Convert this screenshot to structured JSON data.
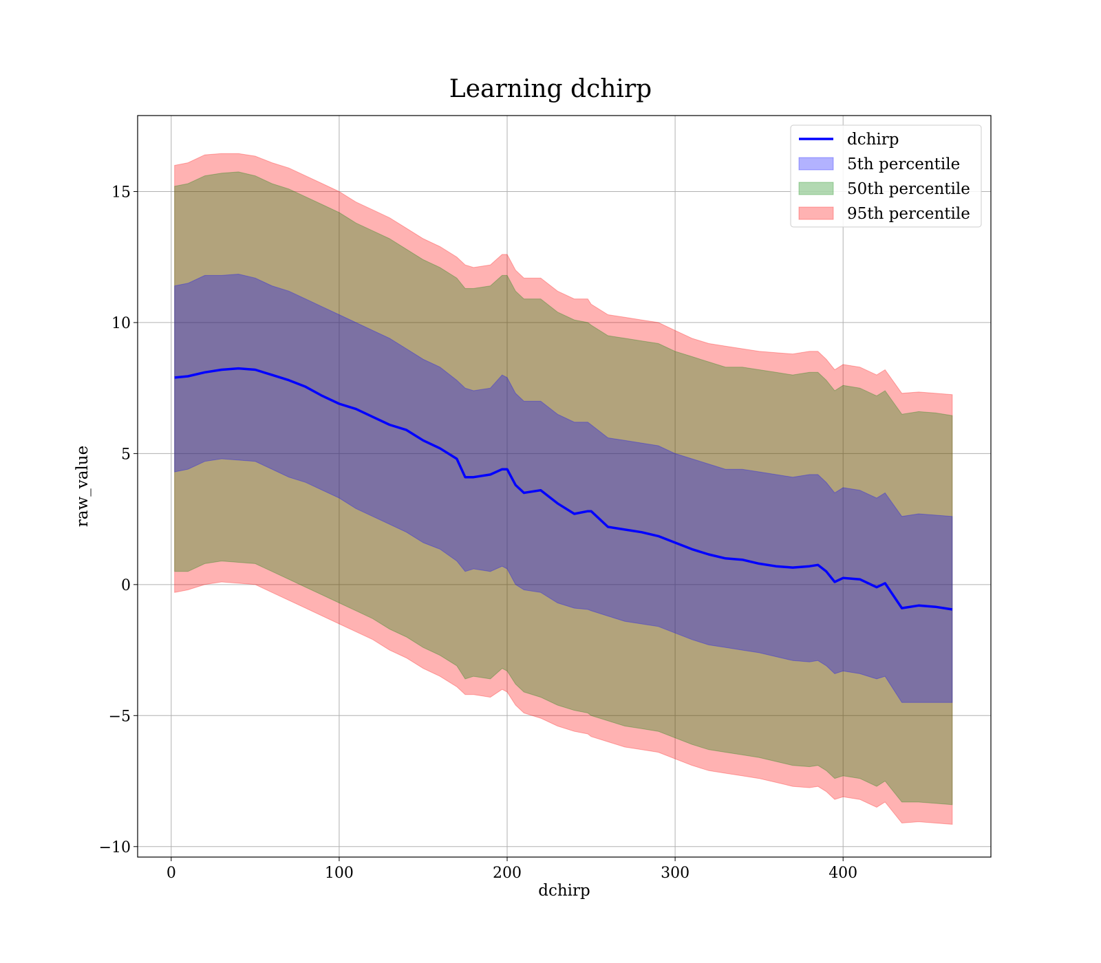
{
  "chart_data": {
    "type": "area",
    "title": "Learning dchirp",
    "xlabel": "dchirp",
    "ylabel": "raw_value",
    "xlim": [
      -20,
      488
    ],
    "ylim": [
      -10.4,
      17.9
    ],
    "x_ticks": [
      0,
      100,
      200,
      300,
      400
    ],
    "x_tick_labels": [
      "0",
      "100",
      "200",
      "300",
      "400"
    ],
    "y_ticks": [
      -10,
      -5,
      0,
      5,
      10,
      15
    ],
    "y_tick_labels": [
      "−10",
      "−5",
      "0",
      "5",
      "10",
      "15"
    ],
    "grid": true,
    "legend_position": "top-right",
    "legend": [
      {
        "label": "dchirp",
        "kind": "line",
        "color": "#0000ff"
      },
      {
        "label": "5th percentile",
        "kind": "band",
        "color": "#0000ff",
        "alpha": 0.3
      },
      {
        "label": "50th percentile",
        "kind": "band",
        "color": "#008000",
        "alpha": 0.3
      },
      {
        "label": "95th percentile",
        "kind": "band",
        "color": "#ff0000",
        "alpha": 0.3
      }
    ],
    "x": [
      2,
      10,
      20,
      30,
      40,
      50,
      60,
      70,
      80,
      90,
      100,
      110,
      120,
      130,
      140,
      150,
      160,
      170,
      175,
      180,
      190,
      197,
      200,
      205,
      210,
      220,
      230,
      240,
      248,
      250,
      260,
      270,
      280,
      290,
      300,
      310,
      320,
      330,
      340,
      350,
      360,
      370,
      380,
      385,
      390,
      395,
      400,
      410,
      420,
      425,
      435,
      445,
      455,
      465
    ],
    "series": [
      {
        "name": "dchirp",
        "values": [
          7.9,
          7.95,
          8.1,
          8.2,
          8.25,
          8.2,
          8.0,
          7.8,
          7.55,
          7.2,
          6.9,
          6.7,
          6.4,
          6.1,
          5.9,
          5.5,
          5.2,
          4.8,
          4.1,
          4.1,
          4.2,
          4.4,
          4.4,
          3.8,
          3.5,
          3.6,
          3.1,
          2.7,
          2.8,
          2.8,
          2.2,
          2.1,
          2.0,
          1.85,
          1.6,
          1.35,
          1.15,
          1.0,
          0.95,
          0.8,
          0.7,
          0.65,
          0.7,
          0.75,
          0.5,
          0.1,
          0.25,
          0.2,
          -0.1,
          0.05,
          -0.9,
          -0.8,
          -0.85,
          -0.95
        ]
      }
    ],
    "bands": [
      {
        "name": "5th percentile",
        "color": "#0000ff",
        "lower": [
          4.3,
          4.4,
          4.7,
          4.8,
          4.75,
          4.7,
          4.4,
          4.1,
          3.9,
          3.6,
          3.3,
          2.9,
          2.6,
          2.3,
          2.0,
          1.6,
          1.35,
          0.9,
          0.5,
          0.6,
          0.5,
          0.7,
          0.6,
          0.0,
          -0.2,
          -0.3,
          -0.7,
          -0.9,
          -0.95,
          -1.0,
          -1.2,
          -1.4,
          -1.5,
          -1.6,
          -1.85,
          -2.1,
          -2.3,
          -2.4,
          -2.5,
          -2.6,
          -2.75,
          -2.9,
          -2.95,
          -2.9,
          -3.1,
          -3.4,
          -3.3,
          -3.4,
          -3.6,
          -3.5,
          -4.5,
          -4.5,
          -4.5,
          -4.5
        ],
        "upper": [
          11.4,
          11.5,
          11.8,
          11.8,
          11.85,
          11.7,
          11.4,
          11.2,
          10.9,
          10.6,
          10.3,
          10.0,
          9.7,
          9.4,
          9.0,
          8.6,
          8.3,
          7.8,
          7.5,
          7.4,
          7.5,
          8.0,
          7.9,
          7.3,
          7.0,
          7.0,
          6.5,
          6.2,
          6.2,
          6.1,
          5.6,
          5.5,
          5.4,
          5.3,
          5.0,
          4.8,
          4.6,
          4.4,
          4.4,
          4.3,
          4.2,
          4.1,
          4.2,
          4.2,
          3.9,
          3.5,
          3.7,
          3.6,
          3.3,
          3.5,
          2.6,
          2.7,
          2.65,
          2.6
        ]
      },
      {
        "name": "50th percentile",
        "color": "#008000",
        "lower": [
          0.5,
          0.5,
          0.8,
          0.9,
          0.85,
          0.8,
          0.5,
          0.2,
          -0.1,
          -0.4,
          -0.7,
          -1.0,
          -1.3,
          -1.7,
          -2.0,
          -2.4,
          -2.7,
          -3.1,
          -3.6,
          -3.5,
          -3.6,
          -3.2,
          -3.3,
          -3.8,
          -4.1,
          -4.3,
          -4.6,
          -4.8,
          -4.9,
          -5.0,
          -5.2,
          -5.4,
          -5.5,
          -5.6,
          -5.85,
          -6.1,
          -6.3,
          -6.4,
          -6.5,
          -6.6,
          -6.75,
          -6.9,
          -6.95,
          -6.9,
          -7.1,
          -7.4,
          -7.3,
          -7.4,
          -7.7,
          -7.5,
          -8.3,
          -8.3,
          -8.35,
          -8.4
        ],
        "upper": [
          15.2,
          15.3,
          15.6,
          15.7,
          15.75,
          15.6,
          15.3,
          15.1,
          14.8,
          14.5,
          14.2,
          13.8,
          13.5,
          13.2,
          12.8,
          12.4,
          12.1,
          11.7,
          11.3,
          11.3,
          11.4,
          11.8,
          11.8,
          11.2,
          10.9,
          10.9,
          10.4,
          10.1,
          10.0,
          9.9,
          9.5,
          9.4,
          9.3,
          9.2,
          8.9,
          8.7,
          8.5,
          8.3,
          8.3,
          8.2,
          8.1,
          8.0,
          8.1,
          8.1,
          7.8,
          7.4,
          7.6,
          7.5,
          7.2,
          7.4,
          6.5,
          6.6,
          6.55,
          6.45
        ]
      },
      {
        "name": "95th percentile",
        "color": "#ff0000",
        "lower": [
          -0.3,
          -0.2,
          0.0,
          0.1,
          0.05,
          0.0,
          -0.3,
          -0.6,
          -0.9,
          -1.2,
          -1.5,
          -1.8,
          -2.1,
          -2.5,
          -2.8,
          -3.2,
          -3.5,
          -3.9,
          -4.2,
          -4.2,
          -4.3,
          -4.0,
          -4.1,
          -4.6,
          -4.9,
          -5.1,
          -5.4,
          -5.6,
          -5.7,
          -5.8,
          -6.0,
          -6.2,
          -6.3,
          -6.4,
          -6.65,
          -6.9,
          -7.1,
          -7.2,
          -7.3,
          -7.4,
          -7.55,
          -7.7,
          -7.75,
          -7.7,
          -7.9,
          -8.2,
          -8.1,
          -8.2,
          -8.5,
          -8.3,
          -9.1,
          -9.05,
          -9.1,
          -9.15
        ],
        "upper": [
          16.0,
          16.1,
          16.4,
          16.45,
          16.45,
          16.35,
          16.1,
          15.9,
          15.6,
          15.3,
          15.0,
          14.6,
          14.3,
          14.0,
          13.6,
          13.2,
          12.9,
          12.5,
          12.2,
          12.1,
          12.2,
          12.6,
          12.6,
          12.0,
          11.7,
          11.7,
          11.2,
          10.9,
          10.9,
          10.7,
          10.3,
          10.2,
          10.1,
          10.0,
          9.7,
          9.4,
          9.2,
          9.1,
          9.0,
          8.9,
          8.85,
          8.8,
          8.9,
          8.9,
          8.6,
          8.2,
          8.4,
          8.3,
          8.0,
          8.2,
          7.3,
          7.35,
          7.3,
          7.25
        ]
      }
    ]
  }
}
